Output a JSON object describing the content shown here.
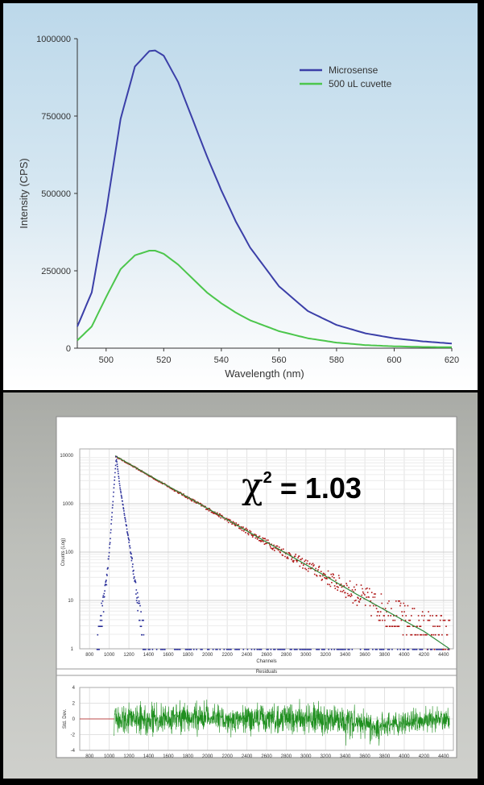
{
  "chart_data": [
    {
      "type": "line",
      "title": "",
      "xlabel": "Wavelength (nm)",
      "ylabel": "Intensity (CPS)",
      "xlim": [
        490,
        620
      ],
      "ylim": [
        0,
        1000000
      ],
      "x_ticks": [
        "500",
        "520",
        "540",
        "560",
        "580",
        "600",
        "620"
      ],
      "y_ticks": [
        "0",
        "250000",
        "500000",
        "750000",
        "1000000"
      ],
      "legend_position": "top-right",
      "series": [
        {
          "name": "Microsense",
          "color": "#3b3fa8",
          "x": [
            490,
            495,
            500,
            505,
            510,
            515,
            517,
            520,
            525,
            530,
            535,
            540,
            545,
            550,
            560,
            570,
            580,
            590,
            600,
            610,
            620
          ],
          "y": [
            70000,
            180000,
            440000,
            740000,
            910000,
            960000,
            962000,
            945000,
            860000,
            740000,
            620000,
            510000,
            410000,
            325000,
            200000,
            120000,
            75000,
            48000,
            32000,
            22000,
            15000
          ]
        },
        {
          "name": "500 uL cuvette",
          "color": "#4cc64c",
          "x": [
            490,
            495,
            500,
            505,
            510,
            515,
            517,
            520,
            525,
            530,
            535,
            540,
            545,
            550,
            560,
            570,
            580,
            590,
            600,
            610,
            620
          ],
          "y": [
            25000,
            70000,
            165000,
            255000,
            300000,
            315000,
            315000,
            305000,
            270000,
            225000,
            180000,
            145000,
            115000,
            90000,
            55000,
            32000,
            18000,
            10000,
            6000,
            4000,
            3000
          ]
        }
      ]
    },
    {
      "type": "scatter",
      "title": "",
      "xlabel": "Channels",
      "ylabel": "Counts (Log)",
      "yscale": "log",
      "xlim": [
        700,
        4500
      ],
      "ylim": [
        1,
        10000
      ],
      "x_ticks": [
        "800",
        "1000",
        "1200",
        "1400",
        "1600",
        "1800",
        "2000",
        "2200",
        "2400",
        "2600",
        "2800",
        "3000",
        "3200",
        "3400",
        "3600",
        "3800",
        "4000",
        "4200",
        "4400"
      ],
      "y_ticks": [
        "1",
        "10",
        "100",
        "1000",
        "10000"
      ],
      "annotation": {
        "chi_symbol": "χ",
        "power": "2",
        "value": "= 1.03"
      },
      "series": [
        {
          "name": "",
          "role": "decay",
          "color": "#b01818",
          "x": [
            1060,
            1500,
            2000,
            2500,
            3000,
            3500,
            4000,
            4460
          ],
          "y": [
            9800,
            3000,
            800,
            210,
            55,
            14,
            4,
            2
          ]
        },
        {
          "name": "",
          "role": "fit",
          "color": "#2e8a3a",
          "x": [
            1060,
            1500,
            2000,
            2500,
            3000,
            3500,
            4000,
            4200,
            4460
          ],
          "y": [
            9800,
            3000,
            800,
            210,
            55,
            14,
            3.8,
            2.3,
            1
          ]
        },
        {
          "name": "",
          "role": "irf",
          "color": "#2a2f9a",
          "x": [
            870,
            960,
            1000,
            1040,
            1065,
            1100,
            1150,
            1200,
            1250,
            1300,
            1350
          ],
          "y": [
            1,
            20,
            150,
            2000,
            9500,
            2500,
            600,
            150,
            30,
            6,
            2
          ]
        }
      ]
    },
    {
      "type": "line",
      "title": "Residuals",
      "xlabel": "",
      "ylabel": "Std. Dev.",
      "xlim": [
        700,
        4500
      ],
      "ylim": [
        -4,
        4
      ],
      "x_ticks": [
        "800",
        "1000",
        "1200",
        "1400",
        "1600",
        "1800",
        "2000",
        "2200",
        "2400",
        "2600",
        "2800",
        "3000",
        "3200",
        "3400",
        "3600",
        "3800",
        "4000",
        "4200",
        "4400"
      ],
      "y_ticks": [
        "-4",
        "-2",
        "0",
        "2",
        "4"
      ],
      "series": [
        {
          "name": "",
          "color": "#1f8f1f",
          "x": [
            1050,
            1500,
            2000,
            2500,
            3000,
            3500,
            3700,
            4000,
            4460
          ],
          "y": [
            0,
            0,
            0,
            0,
            0,
            0,
            -1,
            -0.5,
            0
          ]
        }
      ]
    }
  ]
}
